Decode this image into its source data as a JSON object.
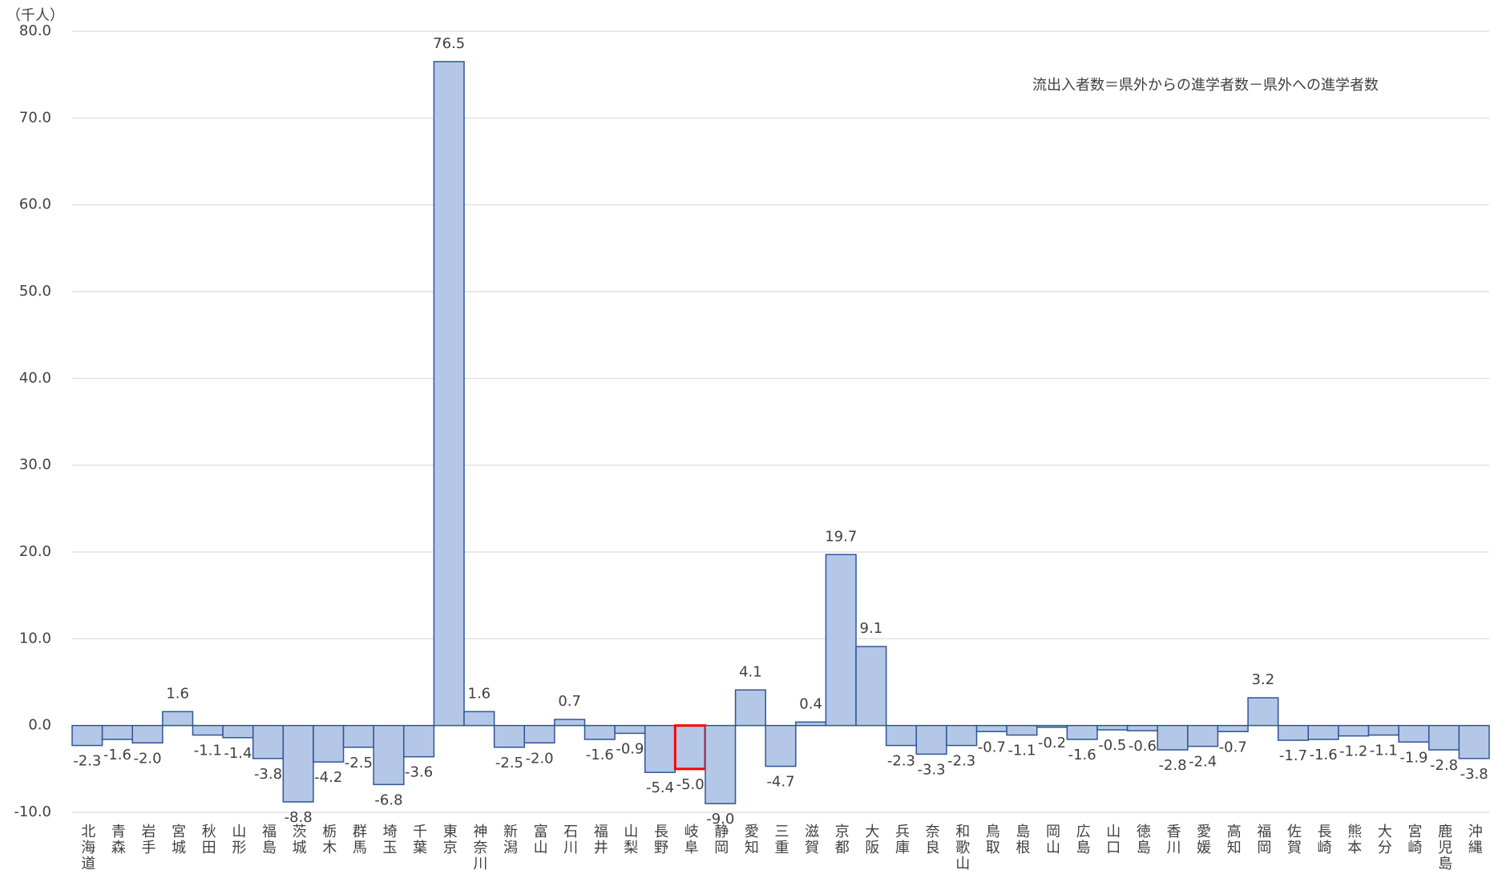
{
  "chart_data": {
    "type": "bar",
    "unit_label": "（千人）",
    "annotation": "流出入者数＝県外からの進学者数－県外への進学者数",
    "categories": [
      "北海道",
      "青森",
      "岩手",
      "宮城",
      "秋田",
      "山形",
      "福島",
      "茨城",
      "栃木",
      "群馬",
      "埼玉",
      "千葉",
      "東京",
      "神奈川",
      "新潟",
      "富山",
      "石川",
      "福井",
      "山梨",
      "長野",
      "岐阜",
      "静岡",
      "愛知",
      "三重",
      "滋賀",
      "京都",
      "大阪",
      "兵庫",
      "奈良",
      "和歌山",
      "鳥取",
      "島根",
      "岡山",
      "広島",
      "山口",
      "徳島",
      "香川",
      "愛媛",
      "高知",
      "福岡",
      "佐賀",
      "長崎",
      "熊本",
      "大分",
      "宮崎",
      "鹿児島",
      "沖縄"
    ],
    "values": [
      -2.3,
      -1.6,
      -2.0,
      1.6,
      -1.1,
      -1.4,
      -3.8,
      -8.8,
      -4.2,
      -2.5,
      -6.8,
      -3.6,
      76.5,
      1.6,
      -2.5,
      -2.0,
      0.7,
      -1.6,
      -0.9,
      -5.4,
      -5.0,
      -9.0,
      4.1,
      -4.7,
      0.4,
      19.7,
      9.1,
      -2.3,
      -3.3,
      -2.3,
      -0.7,
      -1.1,
      -0.2,
      -1.6,
      -0.5,
      -0.6,
      -2.8,
      -2.4,
      -0.7,
      3.2,
      -1.7,
      -1.6,
      -1.2,
      -1.1,
      -1.9,
      -2.8,
      -3.8
    ],
    "value_labels": [
      "-2.3",
      "-1.6",
      "-2.0",
      "1.6",
      "-1.1",
      "-1.4",
      "-3.8",
      "-8.8",
      "-4.2",
      "-2.5",
      "-6.8",
      "-3.6",
      "76.5",
      "1.6",
      "-2.5",
      "-2.0",
      "0.7",
      "-1.6",
      "-0.9",
      "-5.4",
      "-5.0",
      "-9.0",
      "4.1",
      "-4.7",
      "0.4",
      "19.7",
      "9.1",
      "-2.3",
      "-3.3",
      "-2.3",
      "-0.7",
      "-1.1",
      "-0.2",
      "-1.6",
      "-0.5",
      "-0.6",
      "-2.8",
      "-2.4",
      "-0.7",
      "3.2",
      "-1.7",
      "-1.6",
      "-1.2",
      "-1.1",
      "-1.9",
      "-2.8",
      "-3.8"
    ],
    "color": "#b4c7e7",
    "edge_color": "#2f5597",
    "highlight": "岐阜",
    "highlight_color": "#ff0000",
    "ylim": [
      -10,
      80
    ],
    "yticks": [
      {
        "value": -10,
        "label": "-10.0"
      },
      {
        "value": 0,
        "label": "0.0"
      },
      {
        "value": 10,
        "label": "10.0"
      },
      {
        "value": 20,
        "label": "20.0"
      },
      {
        "value": 30,
        "label": "30.0"
      },
      {
        "value": 40,
        "label": "40.0"
      },
      {
        "value": 50,
        "label": "50.0"
      },
      {
        "value": 60,
        "label": "60.0"
      },
      {
        "value": 70,
        "label": "70.0"
      },
      {
        "value": 80,
        "label": "80.0"
      }
    ],
    "grid": true
  }
}
